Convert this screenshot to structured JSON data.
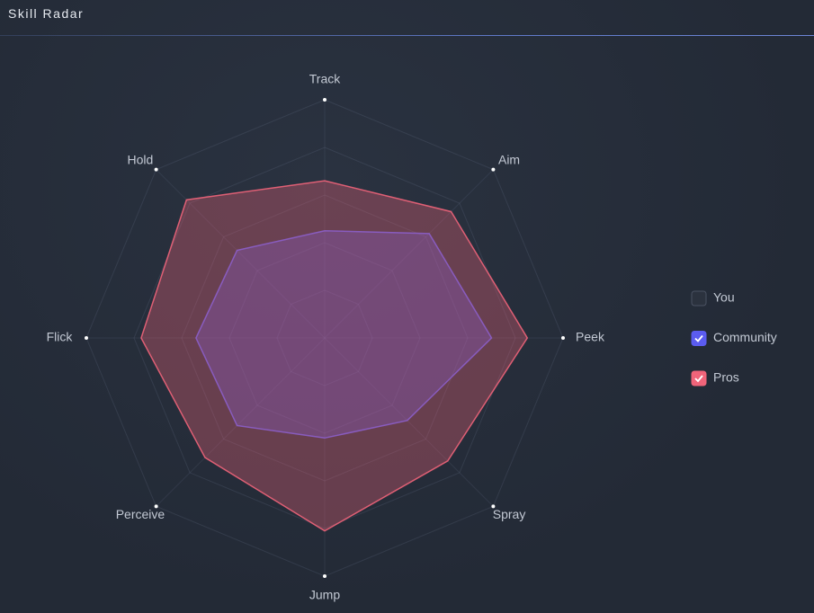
{
  "header": {
    "title": "Skill Radar"
  },
  "chart_data": {
    "type": "radar",
    "categories": [
      "Track",
      "Aim",
      "Peek",
      "Spray",
      "Jump",
      "Perceive",
      "Flick",
      "Hold"
    ],
    "rlim": [
      0,
      100
    ],
    "rticks": [
      20,
      40,
      60,
      80,
      100
    ],
    "grid": true,
    "legend": "right",
    "series": [
      {
        "name": "You",
        "color": "#8a93a6",
        "checked": false,
        "values": [
          null,
          null,
          null,
          null,
          null,
          null,
          null,
          null
        ]
      },
      {
        "name": "Community",
        "color": "#5b5cf0",
        "checked": true,
        "values": [
          45,
          62,
          70,
          49,
          42,
          52,
          54,
          52
        ]
      },
      {
        "name": "Pros",
        "color": "#f0647a",
        "checked": true,
        "values": [
          66,
          75,
          85,
          73,
          81,
          71,
          77,
          82
        ]
      }
    ]
  }
}
